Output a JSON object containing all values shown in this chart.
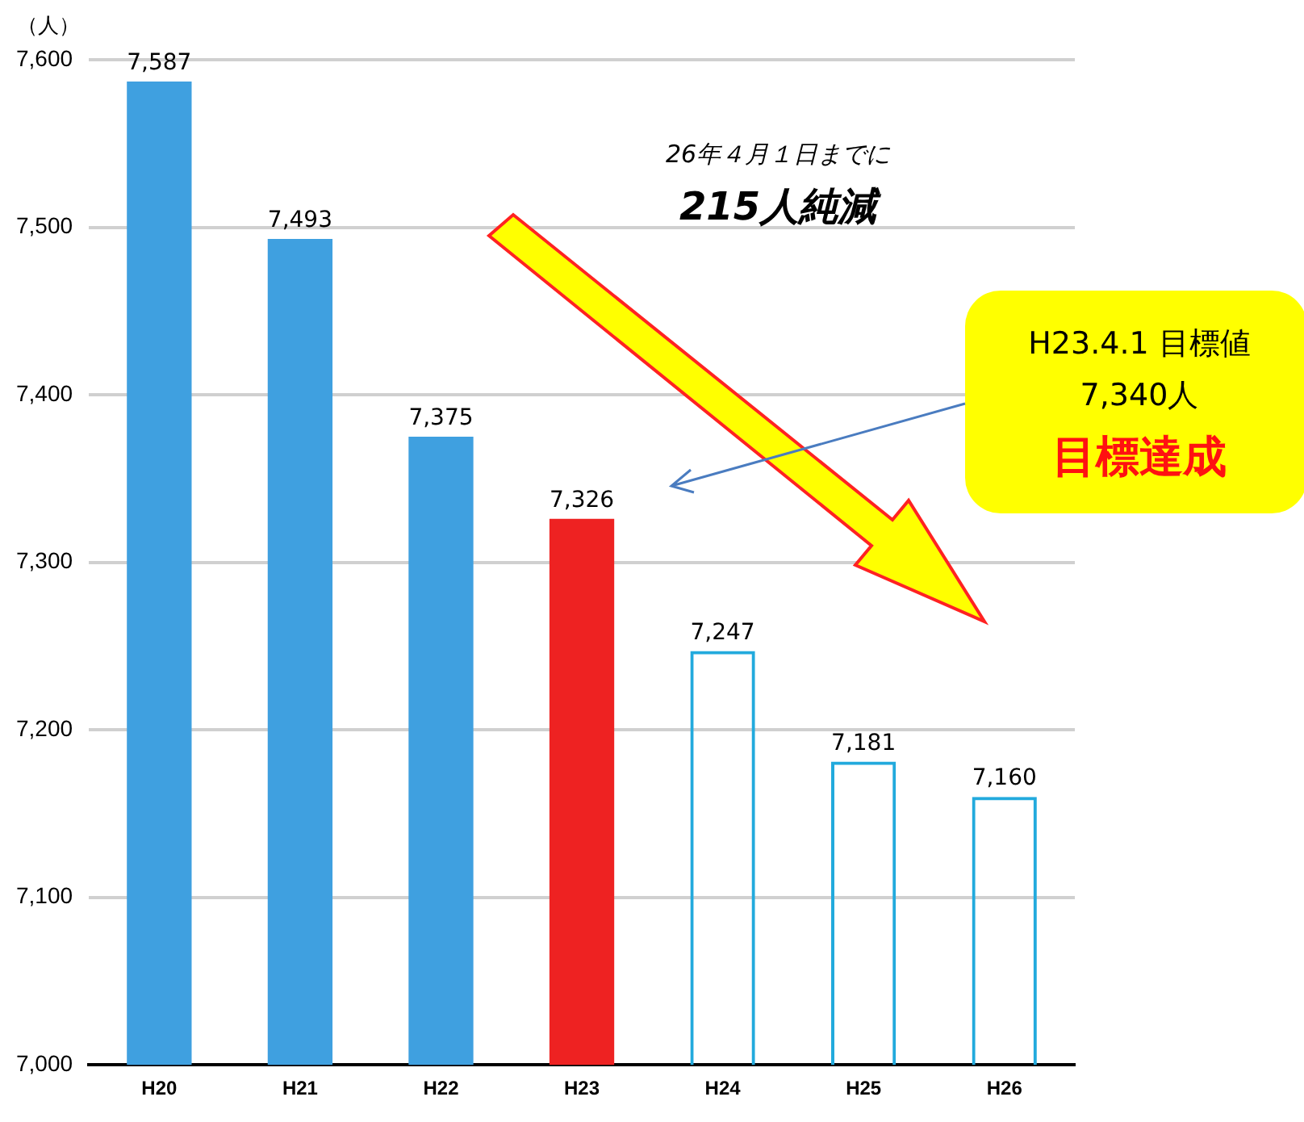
{
  "chart_data": {
    "type": "bar",
    "ylabel": "（人）",
    "categories": [
      "H20",
      "H21",
      "H22",
      "H23",
      "H24",
      "H25",
      "H26"
    ],
    "series": [
      {
        "values": [
          7587,
          7493,
          7375,
          7326,
          null,
          null,
          null
        ],
        "value_labels": [
          "7,587",
          "7,493",
          "7,375",
          "7,326",
          null,
          null,
          null
        ],
        "colors": [
          "#3fa0e0",
          "#3fa0e0",
          "#3fa0e0",
          "#ee2222",
          null,
          null,
          null
        ]
      },
      {
        "values": [
          null,
          null,
          null,
          null,
          7247,
          7181,
          7160
        ],
        "value_labels": [
          null,
          null,
          null,
          null,
          "7,247",
          "7,181",
          "7,160"
        ],
        "color": "#22aadd",
        "line_style": "dashed"
      }
    ],
    "ylim": [
      7000,
      7600
    ],
    "yticks": [
      {
        "value": 7000,
        "label": "7,000"
      },
      {
        "value": 7100,
        "label": "7,100"
      },
      {
        "value": 7200,
        "label": "7,200"
      },
      {
        "value": 7300,
        "label": "7,300"
      },
      {
        "value": 7400,
        "label": "7,400"
      },
      {
        "value": 7500,
        "label": "7,500"
      },
      {
        "value": 7600,
        "label": "7,600"
      }
    ],
    "grid": "y",
    "legend": false,
    "annotations": [
      "26年４月１日までに",
      "215人純減",
      "H23.4.1 目標値",
      "7,340人",
      "目標達成"
    ]
  }
}
